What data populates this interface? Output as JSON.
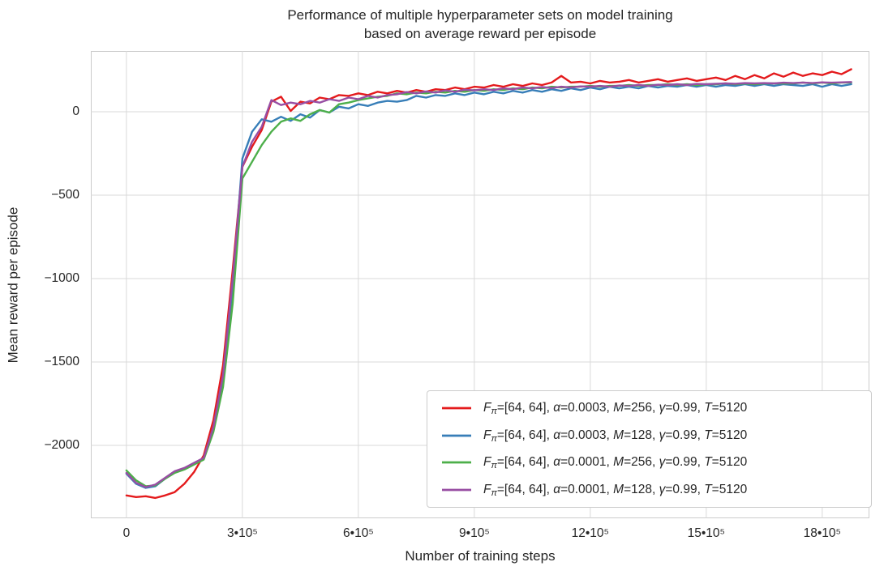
{
  "title": {
    "text": "Performance of multiple hyperparameter sets on model training\nbased on average reward per episode"
  },
  "axes": {
    "x_label": "Number of training steps",
    "y_label": "Mean reward per episode"
  },
  "legend": {
    "items": [
      {
        "parts": [
          "F",
          "π",
          "=[64, 64], ",
          "α",
          "=0.0003, ",
          "M",
          "=256, ",
          "γ",
          "=0.99, ",
          "T",
          "=5120"
        ]
      },
      {
        "parts": [
          "F",
          "π",
          "=[64, 64], ",
          "α",
          "=0.0003, ",
          "M",
          "=128, ",
          "γ",
          "=0.99, ",
          "T",
          "=5120"
        ]
      },
      {
        "parts": [
          "F",
          "π",
          "=[64, 64], ",
          "α",
          "=0.0001, ",
          "M",
          "=256, ",
          "γ",
          "=0.99, ",
          "T",
          "=5120"
        ]
      },
      {
        "parts": [
          "F",
          "π",
          "=[64, 64], ",
          "α",
          "=0.0001, ",
          "M",
          "=128, ",
          "γ",
          "=0.99, ",
          "T",
          "=5120"
        ]
      }
    ]
  },
  "chart_data": {
    "type": "line",
    "title": "Performance of multiple hyperparameter sets on model training\nbased on average reward per episode",
    "xlabel": "Number of training steps",
    "ylabel": "Mean reward per episode",
    "grid": true,
    "legend_position": "lower right",
    "xlim": [
      -92000,
      1922000
    ],
    "ylim": [
      -2437,
      364
    ],
    "x_ticks": [
      {
        "value": 0,
        "label": "0"
      },
      {
        "value": 300000,
        "label": "3•10⁵"
      },
      {
        "value": 600000,
        "label": "6•10⁵"
      },
      {
        "value": 900000,
        "label": "9•10⁵"
      },
      {
        "value": 1200000,
        "label": "12•10⁵"
      },
      {
        "value": 1500000,
        "label": "15•10⁵"
      },
      {
        "value": 1800000,
        "label": "18•10⁵"
      }
    ],
    "y_ticks": [
      {
        "value": 0,
        "label": "0"
      },
      {
        "value": -500,
        "label": "−500"
      },
      {
        "value": -1000,
        "label": "−1000"
      },
      {
        "value": -1500,
        "label": "−1500"
      },
      {
        "value": -2000,
        "label": "−2000"
      }
    ],
    "x_start": 0,
    "x_step": 25000,
    "series": [
      {
        "name": "Fπ=[64, 64], α=0.0003, M=256, γ=0.99, T=5120",
        "color": "#e41a1c",
        "values": [
          -2300,
          -2310,
          -2305,
          -2315,
          -2300,
          -2280,
          -2230,
          -2160,
          -2060,
          -1850,
          -1520,
          -950,
          -330,
          -210,
          -110,
          60,
          90,
          5,
          60,
          50,
          85,
          75,
          100,
          95,
          110,
          100,
          120,
          110,
          125,
          115,
          130,
          120,
          135,
          130,
          145,
          135,
          150,
          145,
          160,
          150,
          165,
          155,
          170,
          160,
          175,
          215,
          175,
          180,
          170,
          185,
          175,
          180,
          190,
          175,
          185,
          195,
          180,
          190,
          200,
          185,
          195,
          205,
          190,
          215,
          195,
          220,
          200,
          230,
          210,
          235,
          215,
          230,
          220,
          240,
          225,
          255
        ]
      },
      {
        "name": "Fπ=[64, 64], α=0.0003, M=128, γ=0.99, T=5120",
        "color": "#377eb8",
        "values": [
          -2170,
          -2230,
          -2255,
          -2245,
          -2200,
          -2160,
          -2140,
          -2110,
          -2080,
          -1900,
          -1600,
          -1050,
          -280,
          -120,
          -45,
          -60,
          -30,
          -55,
          -15,
          -35,
          10,
          -5,
          30,
          20,
          45,
          35,
          55,
          65,
          60,
          70,
          95,
          85,
          100,
          95,
          110,
          100,
          115,
          105,
          120,
          110,
          125,
          115,
          130,
          120,
          135,
          125,
          140,
          130,
          145,
          135,
          150,
          140,
          150,
          140,
          155,
          145,
          155,
          150,
          160,
          150,
          160,
          150,
          160,
          155,
          165,
          155,
          165,
          155,
          165,
          160,
          155,
          165,
          150,
          165,
          155,
          165
        ]
      },
      {
        "name": "Fπ=[64, 64], α=0.0001, M=256, γ=0.99, T=5120",
        "color": "#4daf4a",
        "values": [
          -2150,
          -2210,
          -2245,
          -2240,
          -2200,
          -2165,
          -2145,
          -2115,
          -2085,
          -1920,
          -1650,
          -1150,
          -400,
          -300,
          -200,
          -120,
          -60,
          -40,
          -55,
          -15,
          10,
          -5,
          45,
          55,
          70,
          80,
          90,
          95,
          110,
          105,
          115,
          110,
          120,
          115,
          125,
          120,
          130,
          125,
          135,
          130,
          140,
          135,
          145,
          140,
          150,
          145,
          150,
          150,
          155,
          150,
          155,
          155,
          160,
          155,
          160,
          160,
          165,
          160,
          165,
          160,
          165,
          165,
          170,
          165,
          170,
          165,
          170,
          170,
          170,
          170,
          175,
          170,
          175,
          170,
          175,
          175
        ]
      },
      {
        "name": "Fπ=[64, 64], α=0.0001, M=128, γ=0.99, T=5120",
        "color": "#984ea3",
        "values": [
          -2165,
          -2225,
          -2250,
          -2235,
          -2195,
          -2155,
          -2135,
          -2105,
          -2075,
          -1890,
          -1580,
          -1000,
          -330,
          -180,
          -90,
          70,
          40,
          55,
          45,
          65,
          55,
          75,
          65,
          85,
          75,
          95,
          85,
          100,
          105,
          118,
          110,
          122,
          115,
          128,
          120,
          132,
          128,
          135,
          130,
          140,
          135,
          145,
          140,
          148,
          142,
          150,
          145,
          152,
          150,
          155,
          150,
          157,
          155,
          160,
          155,
          162,
          160,
          165,
          160,
          167,
          165,
          168,
          170,
          168,
          172,
          170,
          172,
          170,
          174,
          172,
          175,
          172,
          176,
          174,
          176,
          178
        ]
      }
    ]
  }
}
